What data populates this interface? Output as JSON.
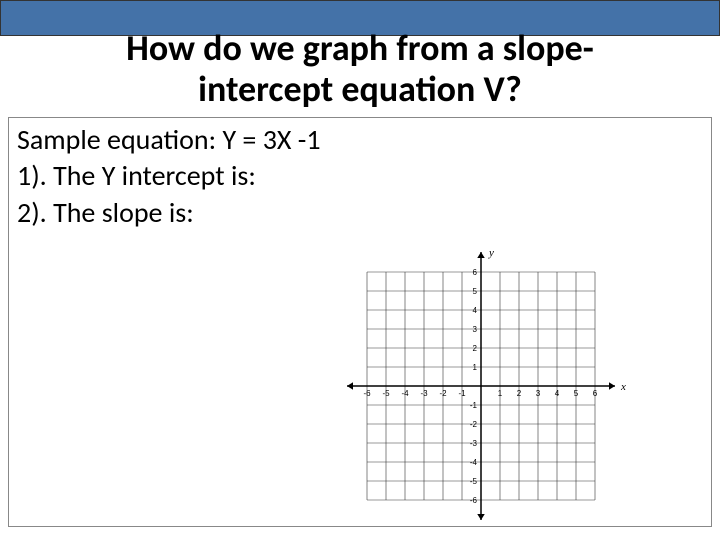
{
  "title_line1": "How do we graph from a slope-",
  "title_line2": "intercept equation V?",
  "sample_line": "Sample equation:  Y = 3X -1",
  "step1": "1).  The Y intercept is:",
  "step2": "2).  The slope is:",
  "colors": {
    "top_bar": "#4472a8",
    "border": "#888888",
    "axis": "#000000",
    "grid": "#000000",
    "text": "#000000",
    "background": "#ffffff"
  },
  "graph": {
    "type": "grid",
    "xlim": [
      -6,
      6
    ],
    "ylim": [
      -6,
      6
    ],
    "xtick_step": 1,
    "ytick_step": 1,
    "xtick_labels": [
      -6,
      -5,
      -4,
      -3,
      -2,
      -1,
      1,
      2,
      3,
      4,
      5,
      6
    ],
    "ytick_labels": [
      6,
      5,
      4,
      3,
      2,
      1,
      -1,
      -2,
      -3,
      -4,
      -5,
      -6
    ],
    "axis_label_x": "x",
    "axis_label_y": "y",
    "axis_color": "#000000",
    "grid_color": "#333333",
    "tick_fontsize": 8,
    "axis_label_fontsize": 11,
    "axis_linewidth": 1.5,
    "grid_linewidth": 0.6,
    "arrow_size": 6
  }
}
